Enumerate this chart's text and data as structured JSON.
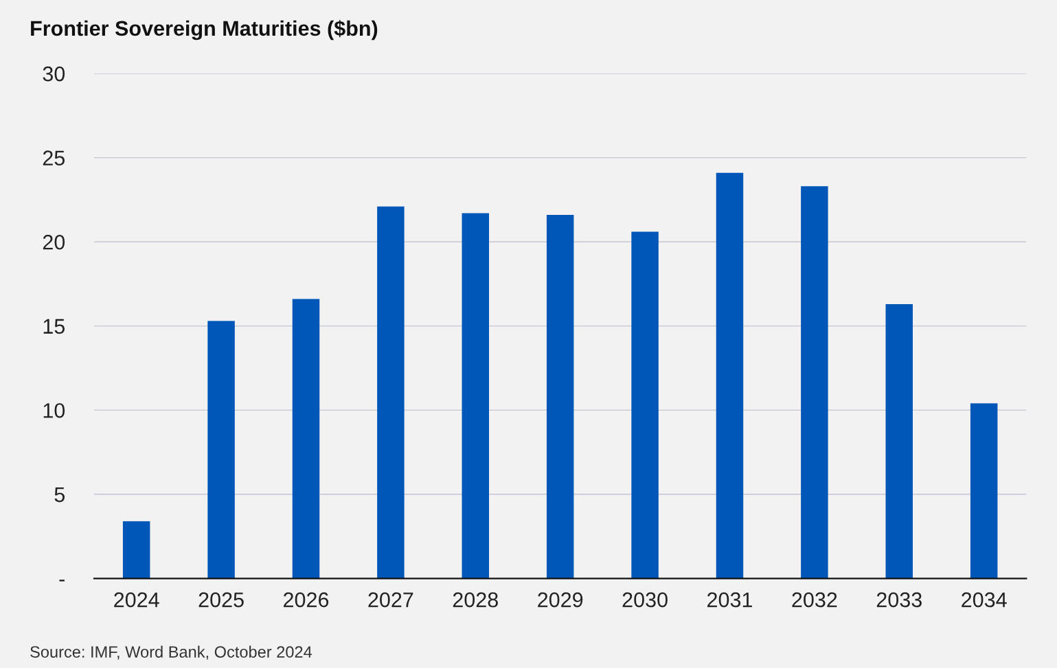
{
  "chart_data": {
    "type": "bar",
    "title": "Frontier Sovereign Maturities ($bn)",
    "categories": [
      "2024",
      "2025",
      "2026",
      "2027",
      "2028",
      "2029",
      "2030",
      "2031",
      "2032",
      "2033",
      "2034"
    ],
    "values": [
      3.4,
      15.3,
      16.6,
      22.1,
      21.7,
      21.6,
      20.6,
      24.1,
      23.3,
      16.3,
      10.4
    ],
    "color": "#0057b8",
    "ylim": [
      0,
      30
    ],
    "yticks": [
      {
        "value": 0,
        "label": "-"
      },
      5,
      10,
      15,
      20,
      25,
      30
    ],
    "grid": "y",
    "annotations": [
      "Source: IMF, Word Bank, October 2024"
    ]
  }
}
